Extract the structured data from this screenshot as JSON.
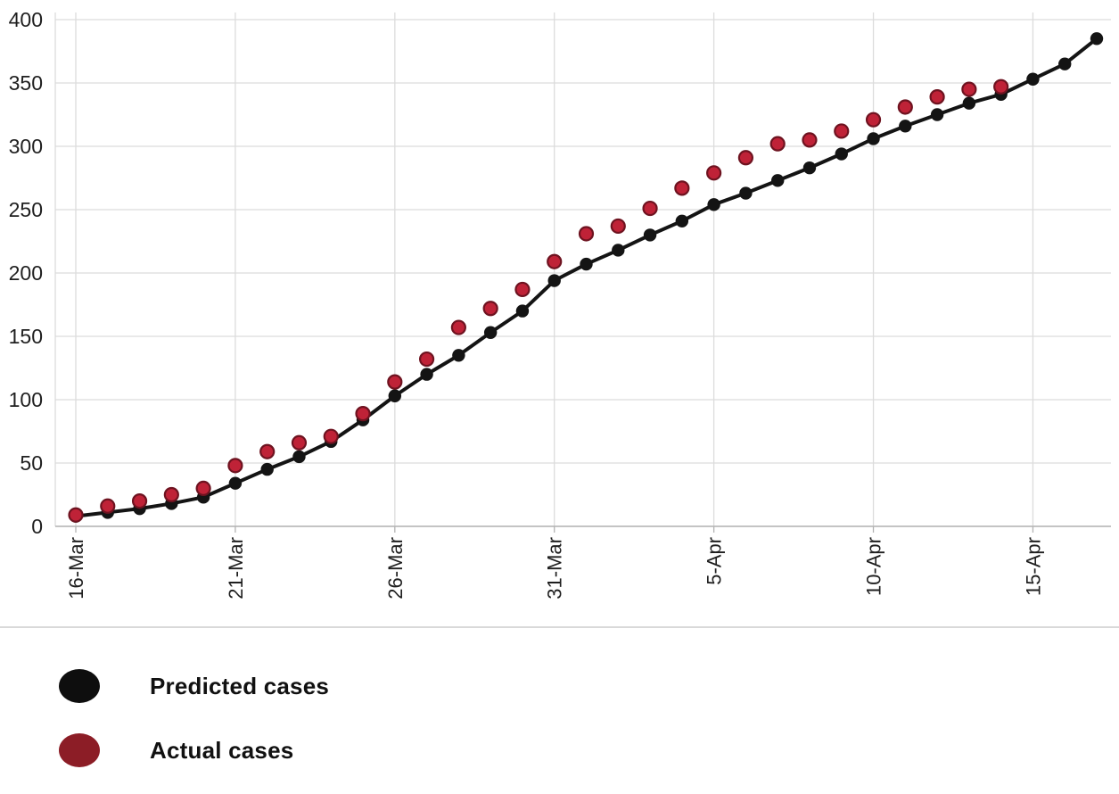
{
  "figure": {
    "background": "#ffffff"
  },
  "chart_data": {
    "type": "line",
    "title": "",
    "xlabel": "",
    "ylabel": "",
    "ylim": [
      0,
      400
    ],
    "y_ticks": [
      0,
      50,
      100,
      150,
      200,
      250,
      300,
      350,
      400
    ],
    "grid": true,
    "legend_position": "bottom",
    "x_tick_labels": [
      "16-Mar",
      "21-Mar",
      "26-Mar",
      "31-Mar",
      "5-Apr",
      "10-Apr",
      "15-Apr"
    ],
    "x_tick_indices": [
      0,
      5,
      10,
      15,
      20,
      25,
      30
    ],
    "colors": {
      "grid": "#dcdcdc",
      "axis": "#b3b3b3",
      "tick_text": "#1f1f1f"
    },
    "series": [
      {
        "name": "Predicted cases",
        "type": "line-markers",
        "color": "#141414",
        "legend_color": "#0e0e0e",
        "values": [
          8,
          11,
          14,
          18,
          23,
          34,
          45,
          55,
          67,
          84,
          103,
          120,
          135,
          153,
          170,
          194,
          207,
          218,
          230,
          241,
          254,
          263,
          273,
          283,
          294,
          306,
          316,
          325,
          334,
          341,
          353,
          365,
          385
        ]
      },
      {
        "name": "Actual cases",
        "type": "markers",
        "color": "#bf2237",
        "marker_stroke": "#6e1320",
        "legend_color": "#8c1d26",
        "values": [
          9,
          16,
          20,
          25,
          30,
          48,
          59,
          66,
          71,
          89,
          114,
          132,
          157,
          172,
          187,
          209,
          231,
          237,
          251,
          267,
          279,
          291,
          302,
          305,
          312,
          321,
          331,
          339,
          345,
          347
        ]
      }
    ]
  }
}
